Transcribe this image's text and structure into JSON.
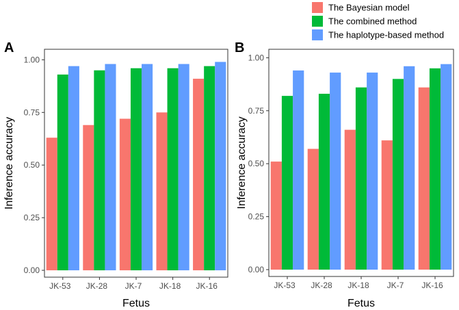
{
  "legend": [
    {
      "label": "The Bayesian model",
      "color": "#F8766D"
    },
    {
      "label": "The combined method",
      "color": "#00BA38"
    },
    {
      "label": "The haplotype-based method",
      "color": "#619CFF"
    }
  ],
  "chart_data": [
    {
      "panel": "A",
      "type": "bar",
      "title": "",
      "xlabel": "Fetus",
      "ylabel": "Inference accuracy",
      "ylim": [
        0,
        1.05
      ],
      "yticks": [
        "0.00",
        "0.25",
        "0.50",
        "0.75",
        "1.00"
      ],
      "categories": [
        "JK-53",
        "JK-28",
        "JK-7",
        "JK-18",
        "JK-16"
      ],
      "series": [
        {
          "name": "The Bayesian model",
          "values": [
            0.63,
            0.69,
            0.72,
            0.75,
            0.91
          ]
        },
        {
          "name": "The combined method",
          "values": [
            0.93,
            0.95,
            0.96,
            0.96,
            0.97
          ]
        },
        {
          "name": "The haplotype-based method",
          "values": [
            0.97,
            0.98,
            0.98,
            0.98,
            0.99
          ]
        }
      ]
    },
    {
      "panel": "B",
      "type": "bar",
      "title": "",
      "xlabel": "Fetus",
      "ylabel": "Inference accuracy",
      "ylim": [
        0,
        1.04
      ],
      "yticks": [
        "0.00",
        "0.25",
        "0.50",
        "0.75",
        "1.00"
      ],
      "categories": [
        "JK-53",
        "JK-28",
        "JK-18",
        "JK-7",
        "JK-16"
      ],
      "series": [
        {
          "name": "The Bayesian model",
          "values": [
            0.51,
            0.57,
            0.66,
            0.61,
            0.86
          ]
        },
        {
          "name": "The combined method",
          "values": [
            0.82,
            0.83,
            0.86,
            0.9,
            0.95
          ]
        },
        {
          "name": "The haplotype-based method",
          "values": [
            0.94,
            0.93,
            0.93,
            0.96,
            0.97
          ]
        }
      ]
    }
  ]
}
